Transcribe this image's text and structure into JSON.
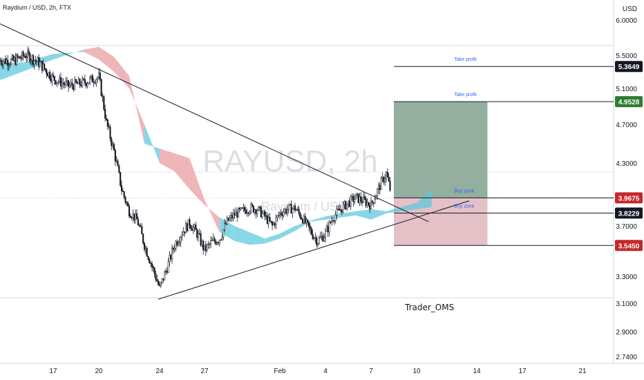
{
  "header": {
    "symbol_line": "Raydium / USD, 2h, FTX"
  },
  "watermark": {
    "main": "RAYUSD, 2h",
    "sub": "Raydium / USD"
  },
  "author": "Trader_OMS",
  "colors": {
    "candle": "#131722",
    "cloud_bull": "#5bc8dc",
    "cloud_bear": "#e99a9f",
    "profit_zone": "#94ae9f",
    "loss_zone": "#e3c1c6",
    "tag_black": "#131722",
    "tag_green": "#2e7d32",
    "tag_red": "#c62828",
    "annotation": "#2962ff"
  },
  "chart_data": {
    "type": "candlestick",
    "title": "Raydium / USD, 2h, FTX",
    "ylabel": "USD",
    "ylim": [
      2.7,
      6.15
    ],
    "y_ticks": [
      "6.0000",
      "5.5000",
      "5.1000",
      "4.7000",
      "4.3000",
      "3.7000",
      "3.3000",
      "3.1000",
      "2.9000",
      "2.7400"
    ],
    "y_tick_values": [
      6.0,
      5.5,
      5.1,
      4.7,
      4.3,
      3.7,
      3.3,
      3.1,
      2.9,
      2.74
    ],
    "x_ticks": [
      "17",
      "20",
      "24",
      "27",
      "Feb",
      "4",
      "7",
      "10",
      "14",
      "17",
      "21"
    ],
    "x_tick_days": [
      17,
      20,
      24,
      27,
      32,
      35,
      38,
      41,
      45,
      48,
      52
    ],
    "price_series": {
      "name": "",
      "day": [
        13.0,
        14.0,
        15.0,
        16.0,
        17.0,
        18.0,
        19.0,
        20.0,
        20.5,
        21.0,
        21.5,
        22.0,
        22.5,
        23.0,
        23.5,
        24.0,
        24.5,
        25.0,
        25.5,
        26.0,
        26.5,
        27.0,
        27.5,
        28.0,
        28.5,
        29.0,
        29.5,
        30.0,
        30.5,
        31.0,
        31.5,
        32.0,
        32.5,
        33.0,
        33.5,
        34.0,
        34.5,
        35.0,
        35.5,
        36.0,
        36.5,
        37.0,
        37.5,
        38.0,
        38.5,
        39.0,
        39.3
      ],
      "price": [
        5.44,
        5.43,
        5.51,
        5.4,
        5.22,
        5.13,
        5.17,
        5.24,
        4.72,
        4.42,
        4.05,
        3.84,
        3.76,
        3.55,
        3.38,
        3.21,
        3.37,
        3.55,
        3.65,
        3.73,
        3.64,
        3.51,
        3.57,
        3.6,
        3.74,
        3.81,
        3.84,
        3.87,
        3.86,
        3.79,
        3.7,
        3.82,
        3.86,
        3.87,
        3.77,
        3.66,
        3.58,
        3.64,
        3.78,
        3.86,
        3.92,
        3.97,
        3.94,
        3.9,
        4.06,
        4.2,
        4.02
      ]
    },
    "cloud": {
      "day": [
        13.0,
        15.0,
        17.0,
        19.0,
        20.0,
        21.0,
        22.0,
        23.0,
        24.0,
        25.0,
        26.0,
        27.0,
        28.0,
        29.0,
        30.0,
        31.0,
        32.0,
        33.0,
        34.0,
        35.0,
        36.0,
        37.0,
        38.0,
        39.0,
        40.0,
        41.0,
        42.0
      ],
      "span_a": [
        5.4,
        5.42,
        5.52,
        5.55,
        5.45,
        5.3,
        5.1,
        4.7,
        4.3,
        4.22,
        4.05,
        3.9,
        3.78,
        3.7,
        3.65,
        3.6,
        3.64,
        3.7,
        3.75,
        3.79,
        3.82,
        3.84,
        3.86,
        3.84,
        3.88,
        3.92,
        4.05
      ],
      "span_b": [
        5.2,
        5.32,
        5.45,
        5.58,
        5.62,
        5.48,
        5.25,
        4.5,
        4.45,
        4.4,
        4.35,
        3.95,
        3.65,
        3.58,
        3.55,
        3.56,
        3.6,
        3.66,
        3.74,
        3.76,
        3.78,
        3.8,
        3.76,
        3.82,
        3.84,
        3.86,
        3.88
      ]
    },
    "trendlines": [
      {
        "name": "descending resistance",
        "from": [
          12.7,
          6.0
        ],
        "to": [
          41.8,
          3.74
        ]
      },
      {
        "name": "ascending support",
        "from": [
          23.9,
          3.13
        ],
        "to": [
          44.5,
          3.94
        ]
      }
    ],
    "position": {
      "entry_zone_top": 3.9675,
      "entry_zone_bottom": 3.8229,
      "take_profit_1": 4.9528,
      "take_profit_2": 5.3649,
      "stop": 3.545,
      "from_day": 39.5,
      "to_day": 45.7
    },
    "levels": [
      {
        "label": "Take profit",
        "value": 5.3649,
        "tag": "5.3649",
        "tag_color": "#131722"
      },
      {
        "label": "Take profit",
        "value": 4.9528,
        "tag": "4.9528",
        "tag_color": "#2e7d32"
      },
      {
        "label": "Buy zone",
        "value": 3.9675,
        "tag": "3.9675",
        "tag_color": "#c62828"
      },
      {
        "label": "Buy zone",
        "value": 3.8229,
        "tag": "3.8229",
        "tag_color": "#131722"
      },
      {
        "label": "",
        "value": 3.545,
        "tag": "3.5450",
        "tag_color": "#c62828"
      }
    ]
  }
}
